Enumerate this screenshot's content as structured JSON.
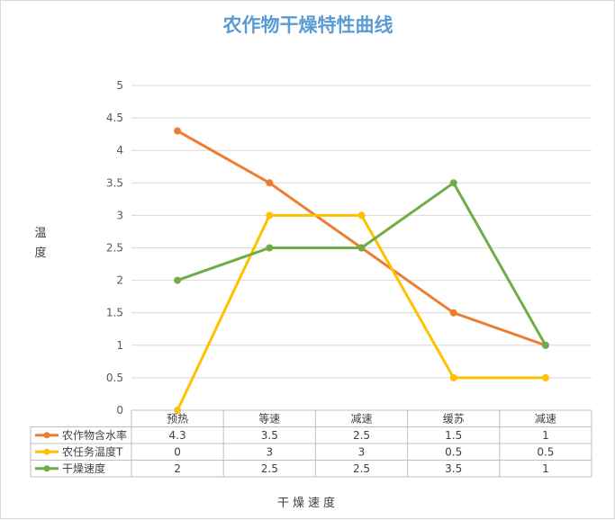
{
  "chart_data": {
    "type": "line",
    "title": "农作物干燥特性曲线",
    "xlabel": "干燥速度",
    "ylabel": "温度",
    "categories": [
      "预热",
      "等速",
      "减速",
      "缓苏",
      "减速"
    ],
    "ylim": [
      0,
      5
    ],
    "yticks": [
      "0",
      "0.5",
      "1",
      "1.5",
      "2",
      "2.5",
      "3",
      "3.5",
      "4",
      "4.5",
      "5"
    ],
    "grid": true,
    "legend": "data-table",
    "series": [
      {
        "name": "农作物含水率",
        "color": "#ed7d31",
        "values": [
          4.3,
          3.5,
          2.5,
          1.5,
          1
        ]
      },
      {
        "name": "农任务温度T",
        "color": "#ffc000",
        "values": [
          0,
          3,
          3,
          0.5,
          0.5
        ]
      },
      {
        "name": "干燥速度",
        "color": "#70ad47",
        "values": [
          2,
          2.5,
          2.5,
          3.5,
          1
        ]
      }
    ]
  }
}
